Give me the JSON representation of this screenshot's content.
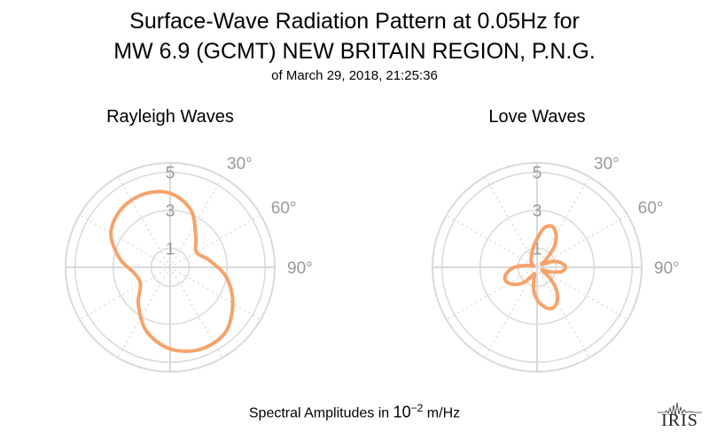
{
  "header": {
    "title_line1": "Surface-Wave Radiation Pattern at 0.05Hz for",
    "title_line2": "MW 6.9 (GCMT) NEW BRITAIN REGION, P.N.G.",
    "subtitle": "of March 29, 2018, 21:25:36"
  },
  "footer": {
    "label_prefix": "Spectral Amplitudes in ",
    "label_base": "10",
    "label_exponent": "−2",
    "label_unit": " m/Hz"
  },
  "logo": {
    "text": "IRIS"
  },
  "colors": {
    "pattern": "#F5A36B",
    "grid": "#d9d9d9",
    "tick_text": "#999999"
  },
  "chart_data": [
    {
      "type": "polar-line",
      "title": "Rayleigh Waves",
      "radial_ticks": [
        1,
        3,
        5
      ],
      "radial_tick_labels": [
        "1",
        "3",
        "5"
      ],
      "angle_ticks": [
        30,
        60,
        90
      ],
      "angle_tick_labels": [
        "30°",
        "60°",
        "90°"
      ],
      "radial_range": [
        0,
        5.5
      ],
      "angle_direction": "clockwise-from-north",
      "azimuth_deg": [
        0,
        20,
        40,
        60,
        80,
        100,
        120,
        140,
        160,
        180,
        200,
        220,
        240,
        260,
        280,
        300,
        320,
        340
      ],
      "amplitude": [
        3.9,
        3.2,
        2.1,
        1.6,
        2.1,
        3.0,
        3.8,
        4.5,
        4.6,
        4.3,
        3.6,
        2.6,
        1.8,
        1.9,
        2.7,
        3.6,
        4.0,
        4.1
      ]
    },
    {
      "type": "polar-line",
      "title": "Love Waves",
      "radial_ticks": [
        1,
        3,
        5
      ],
      "radial_tick_labels": [
        "1",
        "3",
        "5"
      ],
      "angle_ticks": [
        30,
        60,
        90
      ],
      "angle_tick_labels": [
        "30°",
        "60°",
        "90°"
      ],
      "radial_range": [
        0,
        5.5
      ],
      "angle_direction": "clockwise-from-north",
      "azimuth_deg": [
        0,
        10,
        20,
        30,
        40,
        50,
        60,
        70,
        80,
        90,
        100,
        110,
        120,
        130,
        140,
        150,
        160,
        170,
        180,
        190,
        200,
        210,
        220,
        230,
        240,
        250,
        260,
        270,
        280,
        290,
        300,
        310,
        320,
        330,
        340,
        350
      ],
      "amplitude": [
        1.5,
        2.1,
        2.3,
        2.0,
        1.4,
        0.6,
        0.3,
        0.9,
        1.3,
        1.5,
        1.3,
        0.7,
        0.3,
        0.9,
        1.6,
        2.1,
        2.3,
        2.1,
        1.7,
        1.1,
        0.4,
        0.5,
        1.0,
        1.4,
        1.7,
        1.8,
        1.6,
        1.2,
        0.6,
        0.2,
        0.3,
        0.4,
        0.5,
        0.6,
        0.8,
        1.1
      ]
    }
  ]
}
